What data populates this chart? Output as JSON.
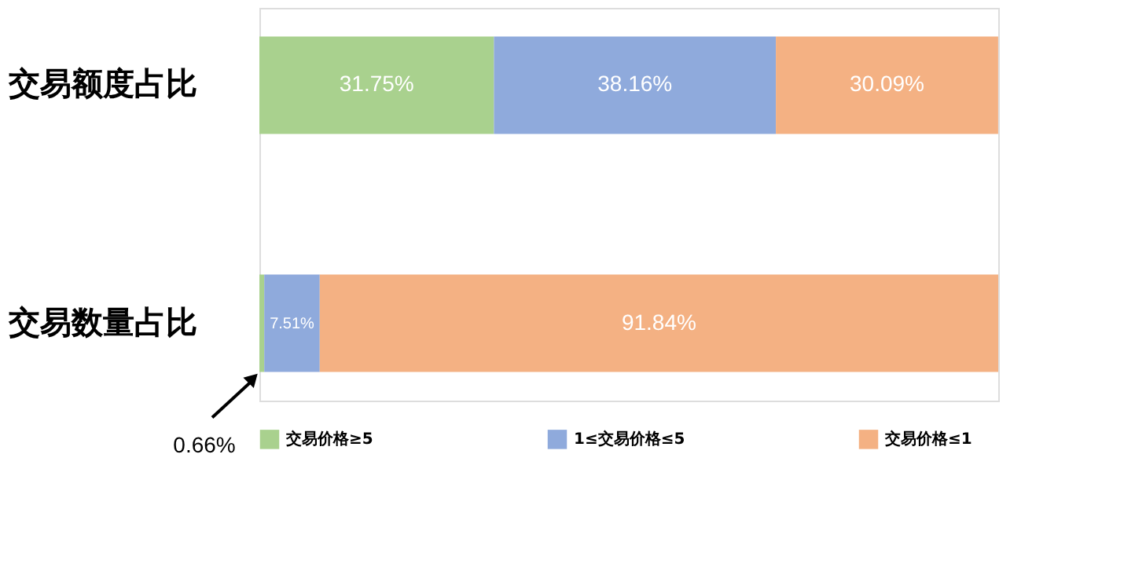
{
  "chart_data": {
    "type": "bar",
    "orientation": "horizontal",
    "stacked": true,
    "categories": [
      "交易额度占比",
      "交易数量占比"
    ],
    "legend": "bottom",
    "series": [
      {
        "name": "交易价格≥5",
        "color": "#a9d18e",
        "values": [
          31.75,
          0.66
        ],
        "value_labels": [
          "31.75%",
          "0.66%"
        ]
      },
      {
        "name": "1≤交易价格≤5",
        "color": "#8faadc",
        "values": [
          38.16,
          7.51
        ],
        "value_labels": [
          "38.16%",
          "7.51%"
        ]
      },
      {
        "name": "交易价格≤1",
        "color": "#f4b183",
        "values": [
          30.09,
          91.84
        ],
        "value_labels": [
          "30.09%",
          "91.84%"
        ]
      }
    ]
  }
}
